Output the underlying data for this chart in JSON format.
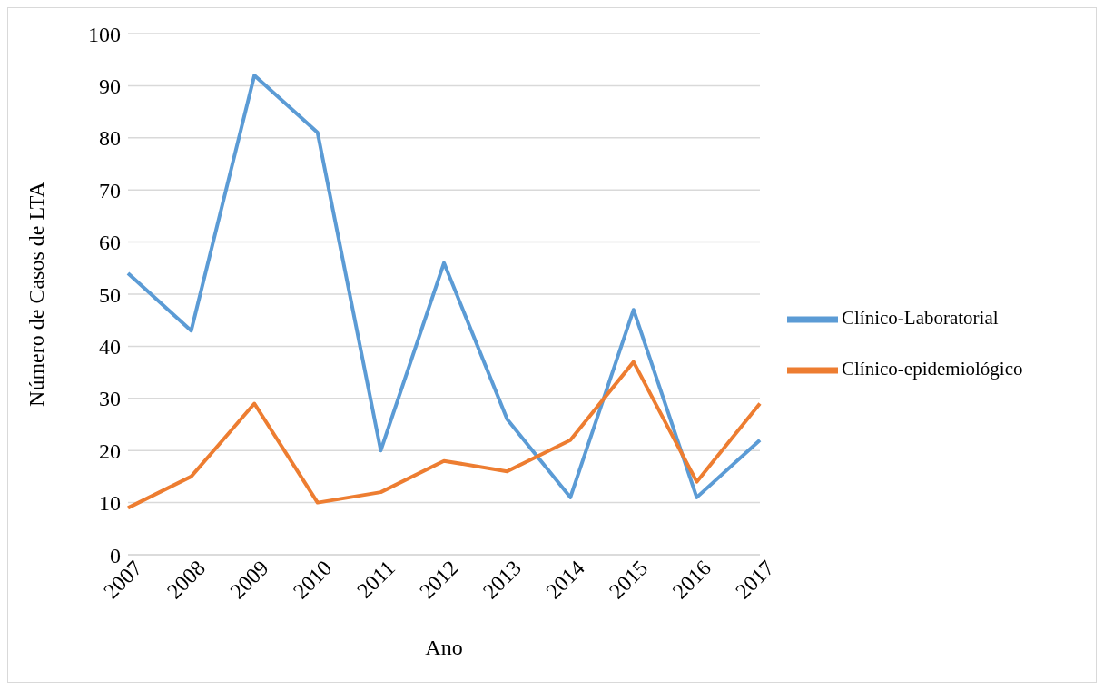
{
  "chart_data": {
    "type": "line",
    "xlabel": "Ano",
    "ylabel": "Número de Casos de LTA",
    "categories": [
      "2007",
      "2008",
      "2009",
      "2010",
      "2011",
      "2012",
      "2013",
      "2014",
      "2015",
      "2016",
      "2017"
    ],
    "series": [
      {
        "name": "Clínico-Laboratorial",
        "color": "#5b9bd5",
        "values": [
          54,
          43,
          92,
          81,
          20,
          56,
          26,
          11,
          47,
          11,
          22
        ]
      },
      {
        "name": "Clínico-epidemiológico",
        "color": "#ed7d31",
        "values": [
          9,
          15,
          29,
          10,
          12,
          18,
          16,
          22,
          37,
          14,
          29
        ]
      }
    ],
    "ylim": [
      0,
      100
    ],
    "yticks": [
      0,
      10,
      20,
      30,
      40,
      50,
      60,
      70,
      80,
      90,
      100
    ],
    "grid": "y",
    "legend": "right",
    "marker": "none",
    "line_style": "solid"
  }
}
